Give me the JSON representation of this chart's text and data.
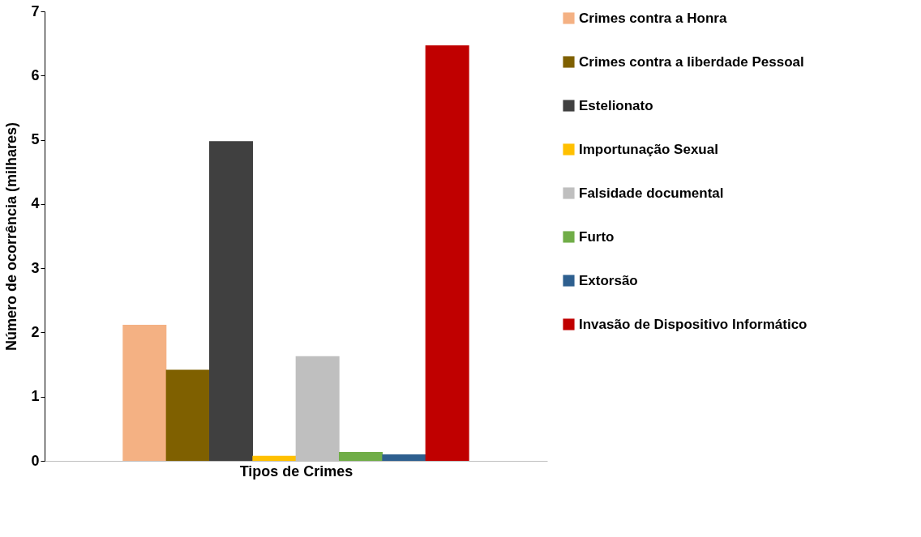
{
  "chart_data": {
    "type": "bar",
    "xlabel": "Tipos de Crimes",
    "ylabel": "Número de ocorrência (milhares)",
    "categories": [
      null
    ],
    "series": [
      {
        "name": "Crimes contra a Honra",
        "color": "#f4b183",
        "values": [
          2.12
        ]
      },
      {
        "name": "Crimes contra a liberdade Pessoal",
        "color": "#7f6000",
        "values": [
          1.42
        ]
      },
      {
        "name": "Estelionato",
        "color": "#404040",
        "values": [
          4.98
        ]
      },
      {
        "name": "Importunação Sexual",
        "color": "#ffc000",
        "values": [
          0.08
        ]
      },
      {
        "name": "Falsidade documental",
        "color": "#bfbfbf",
        "values": [
          1.63
        ]
      },
      {
        "name": "Furto",
        "color": "#70ad47",
        "values": [
          0.14
        ]
      },
      {
        "name": "Extorsão",
        "color": "#2e5f8f",
        "values": [
          0.1
        ]
      },
      {
        "name": "Invasão de Dispositivo Informático",
        "color": "#c00000",
        "values": [
          6.47
        ]
      }
    ],
    "ylim": [
      0,
      7
    ],
    "yticks": [
      0,
      1,
      2,
      3,
      4,
      5,
      6,
      7
    ],
    "grid": false,
    "legend": "right",
    "tick_labels": "y"
  }
}
